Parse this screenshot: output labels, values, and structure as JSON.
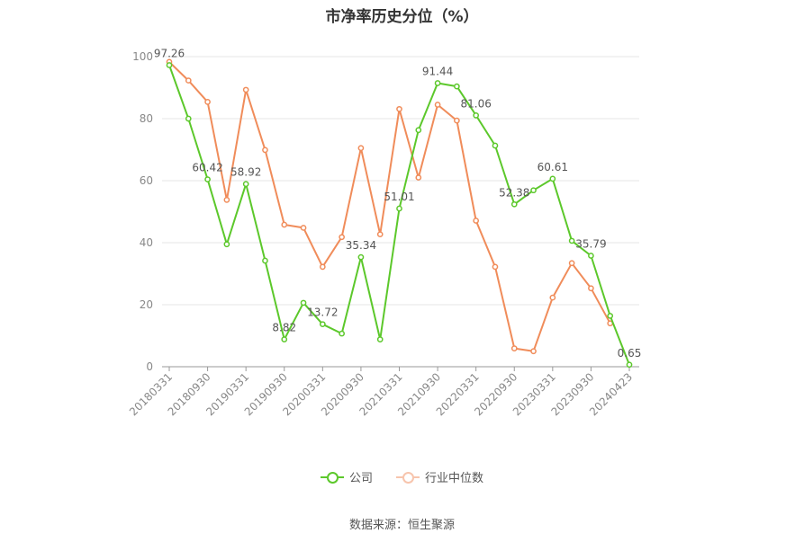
{
  "chart_data": {
    "type": "line",
    "title": "市净率历史分位（%）",
    "ylim": [
      0,
      100
    ],
    "yticks": [
      0,
      20,
      40,
      60,
      80,
      100
    ],
    "x_tick_labels": [
      "20180331",
      "20180930",
      "20190331",
      "20190930",
      "20200331",
      "20200930",
      "20210331",
      "20210930",
      "20220331",
      "20220930",
      "20230331",
      "20230930",
      "20240423"
    ],
    "x": [
      "20180331",
      "20180630",
      "20180930",
      "20181231",
      "20190331",
      "20190630",
      "20190930",
      "20191231",
      "20200331",
      "20200630",
      "20200930",
      "20201231",
      "20210331",
      "20210630",
      "20210930",
      "20211231",
      "20220331",
      "20220630",
      "20220930",
      "20221231",
      "20230331",
      "20230630",
      "20230930",
      "20231231",
      "20240423"
    ],
    "series": [
      {
        "name": "公司",
        "color": "#5cc82b",
        "values": [
          97.26,
          80.0,
          60.42,
          39.5,
          58.92,
          34.2,
          8.82,
          20.6,
          13.72,
          10.7,
          35.34,
          8.8,
          51.01,
          76.3,
          91.44,
          90.4,
          81.06,
          71.3,
          52.38,
          56.9,
          60.61,
          40.6,
          35.79,
          16.4,
          0.65
        ],
        "labels": {
          "0": "97.26",
          "2": "60.42",
          "4": "58.92",
          "6": "8.82",
          "8": "13.72",
          "10": "35.34",
          "12": "51.01",
          "14": "91.44",
          "16": "81.06",
          "18": "52.38",
          "20": "60.61",
          "22": "35.79",
          "24": "0.65"
        }
      },
      {
        "name": "行业中位数",
        "color": "#f08c5a",
        "values": [
          98.3,
          92.3,
          85.4,
          53.8,
          89.3,
          69.9,
          45.8,
          44.8,
          32.2,
          41.8,
          70.5,
          42.7,
          83.1,
          61.0,
          84.5,
          79.4,
          47.1,
          32.2,
          5.9,
          5.0,
          22.3,
          33.4,
          25.3,
          14.0,
          null
        ]
      }
    ],
    "grid": true,
    "legend_position": "bottom"
  },
  "source_text": "数据来源：恒生聚源"
}
